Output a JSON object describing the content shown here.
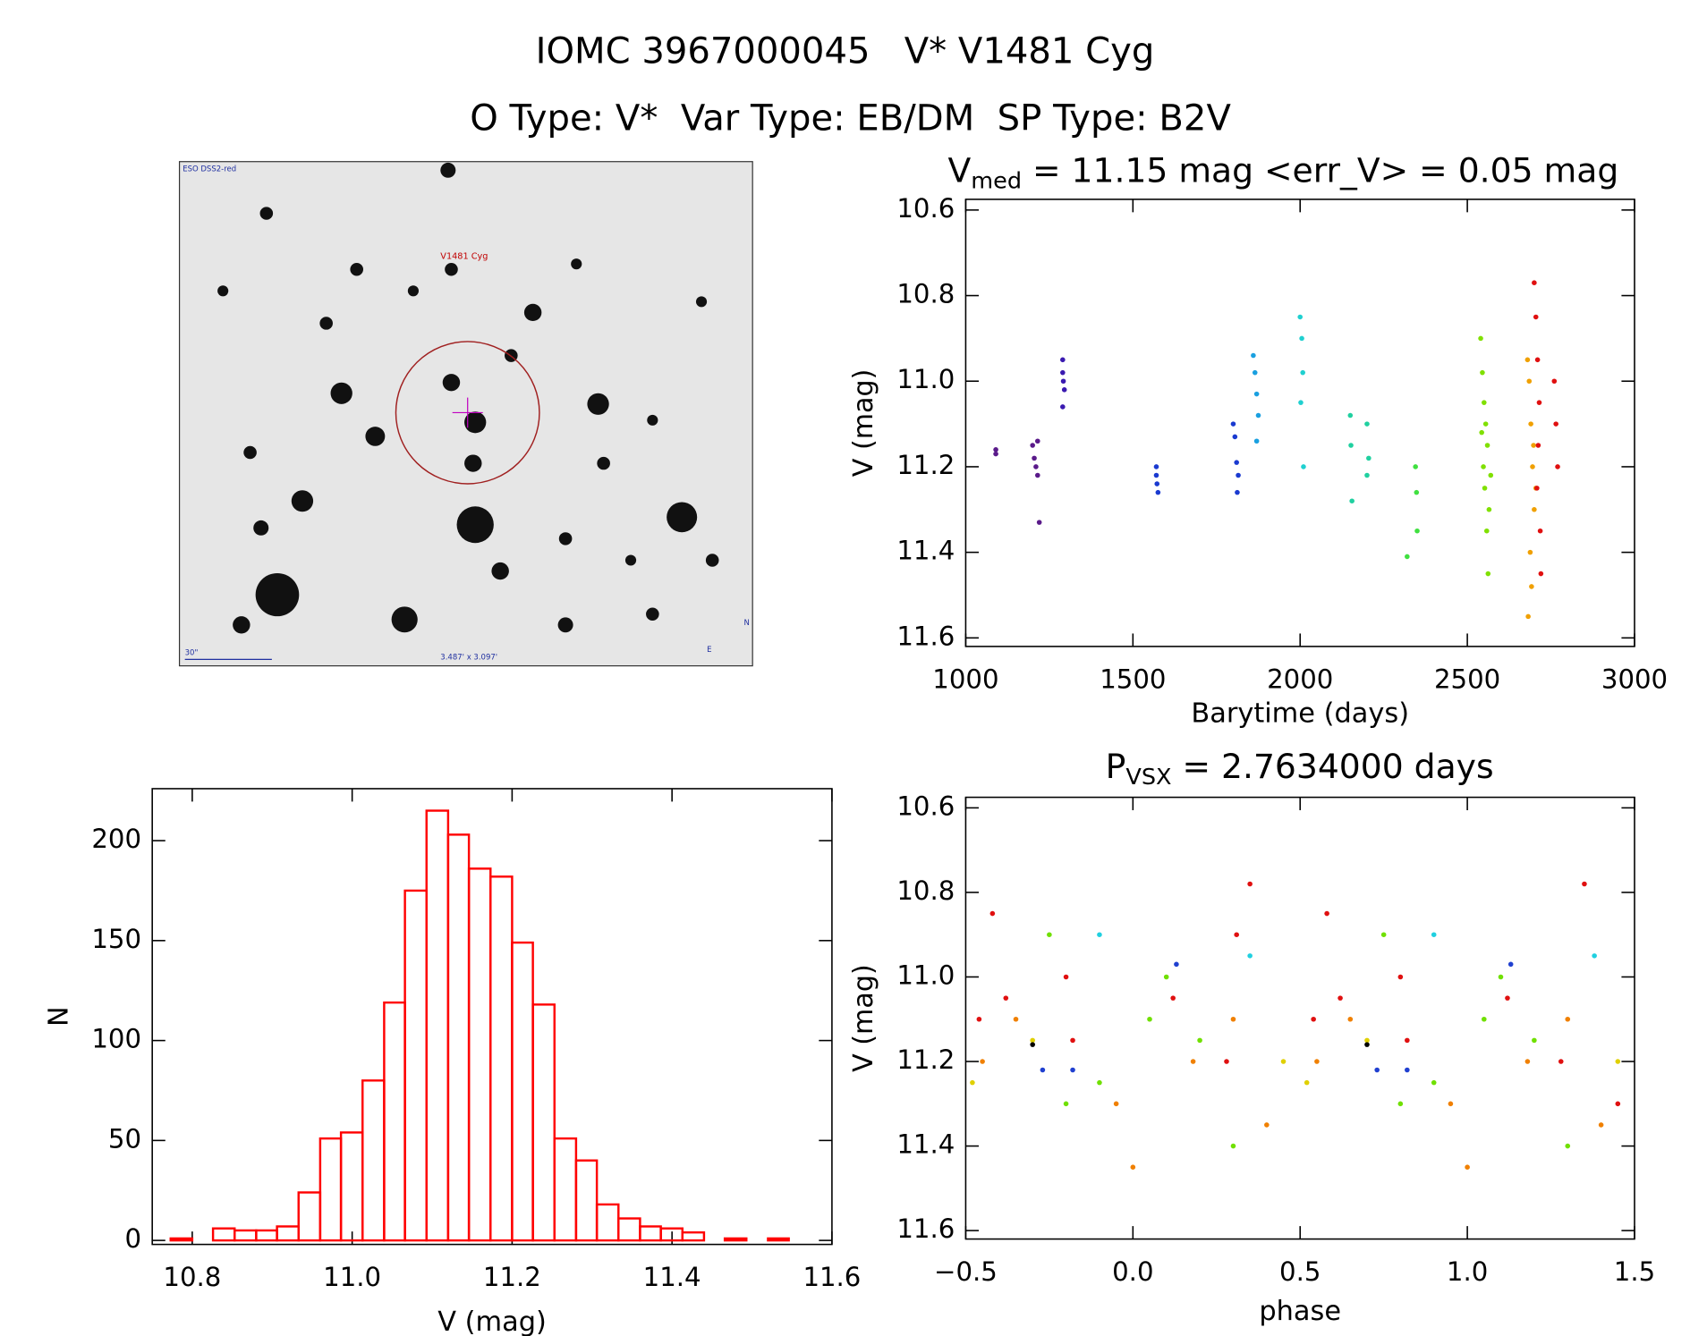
{
  "header": {
    "line1": "IOMC 3967000045   V* V1481 Cyg",
    "line2": "O Type: V*  Var Type: EB/DM  SP Type: B2V"
  },
  "chart_data": [
    {
      "type": "image",
      "labels": {
        "survey": "ESO DSS2-red",
        "target": "V1481 Cyg",
        "scale": "30\"",
        "fov": "3.487' x 3.097'",
        "north": "N",
        "east": "E"
      }
    },
    {
      "type": "scatter",
      "title": {
        "main": "V",
        "sub": "med",
        "rest": " = 11.15 mag <err_V> = 0.05 mag"
      },
      "xlabel": "Barytime (days)",
      "ylabel": "V (mag)",
      "xlim": [
        1000,
        3000
      ],
      "xticks": [
        1000,
        1500,
        2000,
        2500,
        3000
      ],
      "ylim": [
        10.575,
        11.62
      ],
      "y_inverted": true,
      "yticks": [
        10.6,
        10.8,
        {
          "value": 11,
          "label": "11.0"
        },
        11.2,
        11.4,
        11.6
      ],
      "series": [
        {
          "color": "#5a1a8a",
          "x": [
            1090,
            1090,
            1200,
            1205,
            1210,
            1215,
            1220,
            1215
          ],
          "values": [
            11.16,
            11.17,
            11.15,
            11.18,
            11.2,
            11.22,
            11.33,
            11.14
          ]
        },
        {
          "color": "#3a1ab0",
          "x": [
            1290,
            1290,
            1292,
            1295,
            1290
          ],
          "values": [
            10.95,
            10.98,
            11.0,
            11.02,
            11.06
          ]
        },
        {
          "color": "#1a3ad0",
          "x": [
            1570,
            1570,
            1572,
            1575,
            1800,
            1805,
            1810,
            1815,
            1812
          ],
          "values": [
            11.2,
            11.22,
            11.24,
            11.26,
            11.1,
            11.13,
            11.19,
            11.22,
            11.26
          ]
        },
        {
          "color": "#1aa0e0",
          "x": [
            1860,
            1865,
            1870,
            1875,
            1870
          ],
          "values": [
            10.94,
            10.98,
            11.03,
            11.08,
            11.14
          ]
        },
        {
          "color": "#20d0d0",
          "x": [
            2000,
            2005,
            2008,
            2002,
            2010
          ],
          "values": [
            10.85,
            10.9,
            10.98,
            11.05,
            11.2
          ]
        },
        {
          "color": "#20d0a0",
          "x": [
            2150,
            2152,
            2155,
            2200,
            2205,
            2200
          ],
          "values": [
            11.08,
            11.15,
            11.28,
            11.1,
            11.18,
            11.22
          ]
        },
        {
          "color": "#40e040",
          "x": [
            2320,
            2345,
            2348,
            2350
          ],
          "values": [
            11.41,
            11.2,
            11.26,
            11.35
          ]
        },
        {
          "color": "#80e000",
          "x": [
            2540,
            2545,
            2550,
            2555,
            2560,
            2548,
            2552,
            2565,
            2558,
            2562,
            2543,
            2570
          ],
          "values": [
            10.9,
            10.98,
            11.05,
            11.1,
            11.15,
            11.2,
            11.25,
            11.3,
            11.35,
            11.45,
            11.12,
            11.22
          ]
        },
        {
          "color": "#f0a000",
          "x": [
            2680,
            2685,
            2690,
            2695,
            2700,
            2688,
            2692,
            2682,
            2698,
            2705
          ],
          "values": [
            10.95,
            11.0,
            11.1,
            11.2,
            11.3,
            11.4,
            11.48,
            11.55,
            11.15,
            11.25
          ]
        },
        {
          "color": "#e01010",
          "x": [
            2700,
            2705,
            2710,
            2715,
            2712,
            2708,
            2718,
            2760,
            2765,
            2770,
            2720
          ],
          "values": [
            10.77,
            10.85,
            10.95,
            11.05,
            11.15,
            11.25,
            11.35,
            11.0,
            11.1,
            11.2,
            11.45
          ]
        }
      ]
    },
    {
      "type": "histogram",
      "xlabel": "V (mag)",
      "ylabel": "N",
      "color": "#ff0000",
      "xlim": [
        10.75,
        11.6
      ],
      "xticks": [
        10.8,
        {
          "value": 11,
          "label": "11.0"
        },
        11.2,
        11.4,
        11.6
      ],
      "ylim": [
        -2,
        226
      ],
      "yticks": [
        0,
        50,
        100,
        150,
        200
      ],
      "bins": [
        10.773,
        10.8,
        10.826,
        10.853,
        10.88,
        10.906,
        10.933,
        10.96,
        10.986,
        11.013,
        11.04,
        11.066,
        11.093,
        11.12,
        11.146,
        11.173,
        11.2,
        11.226,
        11.253,
        11.28,
        11.306,
        11.333,
        11.36,
        11.386,
        11.413,
        11.44,
        11.466,
        11.493,
        11.52,
        11.546
      ],
      "values": [
        1,
        0,
        6,
        5,
        5,
        7,
        24,
        51,
        54,
        80,
        119,
        175,
        215,
        203,
        186,
        182,
        149,
        118,
        51,
        40,
        18,
        11,
        7,
        6,
        4,
        0,
        1,
        0,
        1
      ]
    },
    {
      "type": "scatter",
      "title": {
        "main": "P",
        "sub": "VSX",
        "rest": " = 2.7634000 days"
      },
      "xlabel": "phase",
      "ylabel": "V (mag)",
      "xlim": [
        -0.5,
        1.5
      ],
      "xticks": [
        {
          "value": -0.5,
          "label": "−0.5"
        },
        {
          "value": 0,
          "label": "0.0"
        },
        0.5,
        {
          "value": 1,
          "label": "1.0"
        },
        1.5
      ],
      "ylim": [
        10.575,
        11.62
      ],
      "y_inverted": true,
      "yticks": [
        10.6,
        10.8,
        {
          "value": 11,
          "label": "11.0"
        },
        11.2,
        11.4,
        11.6
      ],
      "series": [
        {
          "color": "#e01010",
          "x": [
            -0.46,
            -0.42,
            -0.38,
            -0.2,
            -0.18,
            0.12,
            0.28,
            0.31,
            0.35,
            0.54,
            0.58,
            0.62,
            0.8,
            0.82,
            1.12,
            1.28,
            1.35,
            1.45
          ],
          "values": [
            11.1,
            10.85,
            11.05,
            11.0,
            11.15,
            11.05,
            11.2,
            10.9,
            10.78,
            11.1,
            10.85,
            11.05,
            11.0,
            11.15,
            11.05,
            11.2,
            10.78,
            11.3
          ]
        },
        {
          "color": "#f08000",
          "x": [
            -0.45,
            -0.35,
            -0.05,
            0.0,
            0.18,
            0.3,
            0.4,
            0.55,
            0.65,
            0.95,
            1.0,
            1.18,
            1.3,
            1.4
          ],
          "values": [
            11.2,
            11.1,
            11.3,
            11.45,
            11.2,
            11.1,
            11.35,
            11.2,
            11.1,
            11.3,
            11.45,
            11.2,
            11.1,
            11.35
          ]
        },
        {
          "color": "#70e000",
          "x": [
            -0.25,
            -0.2,
            -0.1,
            0.05,
            0.1,
            0.2,
            0.3,
            0.75,
            0.8,
            0.9,
            1.05,
            1.1,
            1.2,
            1.3
          ],
          "values": [
            10.9,
            11.3,
            11.25,
            11.1,
            11.0,
            11.15,
            11.4,
            10.9,
            11.3,
            11.25,
            11.1,
            11.0,
            11.15,
            11.4
          ]
        },
        {
          "color": "#e0d000",
          "x": [
            -0.48,
            -0.3,
            0.45,
            0.52,
            0.7,
            1.45
          ],
          "values": [
            11.25,
            11.15,
            11.2,
            11.25,
            11.15,
            11.2
          ]
        },
        {
          "color": "#20d0e0",
          "x": [
            -0.1,
            0.35,
            0.9,
            1.38
          ],
          "values": [
            10.9,
            10.95,
            10.9,
            10.95
          ]
        },
        {
          "color": "#2040d0",
          "x": [
            -0.27,
            -0.18,
            0.13,
            0.73,
            0.82,
            1.13
          ],
          "values": [
            11.22,
            11.22,
            10.97,
            11.22,
            11.22,
            10.97
          ]
        },
        {
          "color": "#000000",
          "x": [
            -0.3,
            0.7
          ],
          "values": [
            11.16,
            11.16
          ]
        }
      ]
    }
  ]
}
